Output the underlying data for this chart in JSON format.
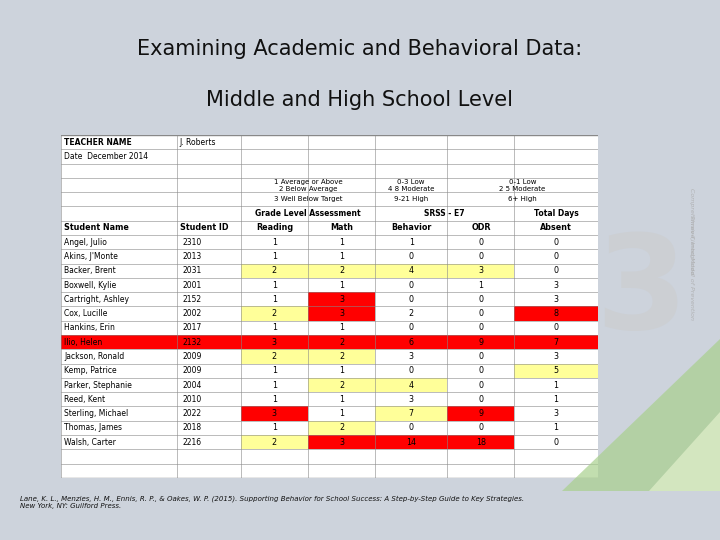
{
  "title_line1": "Examining Academic and Behavioral Data:",
  "title_line2": "Middle and High School Level",
  "title_bg_color": "#9aa5b8",
  "slide_bg_color": "#cdd3dc",
  "table_bg_color": "#ffffff",
  "teacher_name": "J. Roberts",
  "date_text": "Date  December 2014",
  "citation": "Lane, K. L., Menzies, H. M., Ennis, R. P., & Oakes, W. P. (2015). Supporting Behavior for School Success: A Step-by-Step Guide to Key Strategies.\nNew York, NY: Guilford Press.",
  "yellow": "#FFFF99",
  "red": "#FF0000",
  "white": "#FFFFFF",
  "students": [
    {
      "name": "Angel, Julio",
      "id": "2310",
      "reading": 1,
      "math": 1,
      "behavior": 1,
      "odr": 0,
      "absent": 0
    },
    {
      "name": "Akins, J'Monte",
      "id": "2013",
      "reading": 1,
      "math": 1,
      "behavior": 0,
      "odr": 0,
      "absent": 0
    },
    {
      "name": "Backer, Brent",
      "id": "2031",
      "reading": 2,
      "math": 2,
      "behavior": 4,
      "odr": 3,
      "absent": 0
    },
    {
      "name": "Boxwell, Kylie",
      "id": "2001",
      "reading": 1,
      "math": 1,
      "behavior": 0,
      "odr": 1,
      "absent": 3
    },
    {
      "name": "Cartright, Ashley",
      "id": "2152",
      "reading": 1,
      "math": 3,
      "behavior": 0,
      "odr": 0,
      "absent": 3
    },
    {
      "name": "Cox, Lucille",
      "id": "2002",
      "reading": 2,
      "math": 3,
      "behavior": 2,
      "odr": 0,
      "absent": 8
    },
    {
      "name": "Hankins, Erin",
      "id": "2017",
      "reading": 1,
      "math": 1,
      "behavior": 0,
      "odr": 0,
      "absent": 0
    },
    {
      "name": "Ilio, Helen",
      "id": "2132",
      "reading": 3,
      "math": 2,
      "behavior": 6,
      "odr": 9,
      "absent": 7
    },
    {
      "name": "Jackson, Ronald",
      "id": "2009",
      "reading": 2,
      "math": 2,
      "behavior": 3,
      "odr": 0,
      "absent": 3
    },
    {
      "name": "Kemp, Patrice",
      "id": "2009",
      "reading": 1,
      "math": 1,
      "behavior": 0,
      "odr": 0,
      "absent": 5
    },
    {
      "name": "Parker, Stephanie",
      "id": "2004",
      "reading": 1,
      "math": 2,
      "behavior": 4,
      "odr": 0,
      "absent": 1
    },
    {
      "name": "Reed, Kent",
      "id": "2010",
      "reading": 1,
      "math": 1,
      "behavior": 3,
      "odr": 0,
      "absent": 1
    },
    {
      "name": "Sterling, Michael",
      "id": "2022",
      "reading": 3,
      "math": 1,
      "behavior": 7,
      "odr": 9,
      "absent": 3
    },
    {
      "name": "Thomas, James",
      "id": "2018",
      "reading": 1,
      "math": 2,
      "behavior": 0,
      "odr": 0,
      "absent": 1
    },
    {
      "name": "Walsh, Carter",
      "id": "2216",
      "reading": 2,
      "math": 3,
      "behavior": 14,
      "odr": 18,
      "absent": 0
    }
  ]
}
